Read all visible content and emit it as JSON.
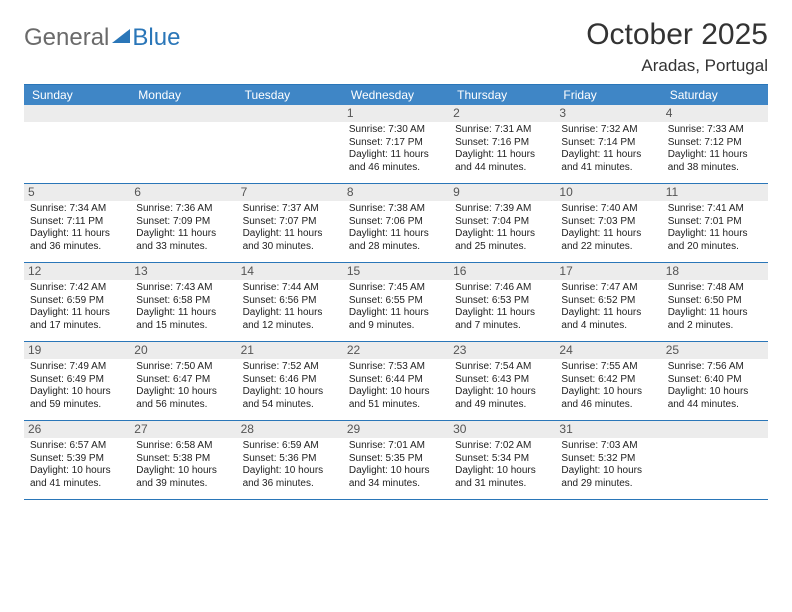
{
  "logo": {
    "general": "General",
    "blue": "Blue"
  },
  "title": "October 2025",
  "location": "Aradas, Portugal",
  "day_headers": [
    "Sunday",
    "Monday",
    "Tuesday",
    "Wednesday",
    "Thursday",
    "Friday",
    "Saturday"
  ],
  "colors": {
    "header_bg": "#3f86c6",
    "border": "#2a76b8",
    "daynum_bg": "#ececec",
    "logo_grey": "#6a6a6a",
    "logo_blue": "#2a76b8"
  },
  "weeks": [
    [
      {
        "blank": true
      },
      {
        "blank": true
      },
      {
        "blank": true
      },
      {
        "n": "1",
        "sr": "7:30 AM",
        "ss": "7:17 PM",
        "dl": "11 hours and 46 minutes."
      },
      {
        "n": "2",
        "sr": "7:31 AM",
        "ss": "7:16 PM",
        "dl": "11 hours and 44 minutes."
      },
      {
        "n": "3",
        "sr": "7:32 AM",
        "ss": "7:14 PM",
        "dl": "11 hours and 41 minutes."
      },
      {
        "n": "4",
        "sr": "7:33 AM",
        "ss": "7:12 PM",
        "dl": "11 hours and 38 minutes."
      }
    ],
    [
      {
        "n": "5",
        "sr": "7:34 AM",
        "ss": "7:11 PM",
        "dl": "11 hours and 36 minutes."
      },
      {
        "n": "6",
        "sr": "7:36 AM",
        "ss": "7:09 PM",
        "dl": "11 hours and 33 minutes."
      },
      {
        "n": "7",
        "sr": "7:37 AM",
        "ss": "7:07 PM",
        "dl": "11 hours and 30 minutes."
      },
      {
        "n": "8",
        "sr": "7:38 AM",
        "ss": "7:06 PM",
        "dl": "11 hours and 28 minutes."
      },
      {
        "n": "9",
        "sr": "7:39 AM",
        "ss": "7:04 PM",
        "dl": "11 hours and 25 minutes."
      },
      {
        "n": "10",
        "sr": "7:40 AM",
        "ss": "7:03 PM",
        "dl": "11 hours and 22 minutes."
      },
      {
        "n": "11",
        "sr": "7:41 AM",
        "ss": "7:01 PM",
        "dl": "11 hours and 20 minutes."
      }
    ],
    [
      {
        "n": "12",
        "sr": "7:42 AM",
        "ss": "6:59 PM",
        "dl": "11 hours and 17 minutes."
      },
      {
        "n": "13",
        "sr": "7:43 AM",
        "ss": "6:58 PM",
        "dl": "11 hours and 15 minutes."
      },
      {
        "n": "14",
        "sr": "7:44 AM",
        "ss": "6:56 PM",
        "dl": "11 hours and 12 minutes."
      },
      {
        "n": "15",
        "sr": "7:45 AM",
        "ss": "6:55 PM",
        "dl": "11 hours and 9 minutes."
      },
      {
        "n": "16",
        "sr": "7:46 AM",
        "ss": "6:53 PM",
        "dl": "11 hours and 7 minutes."
      },
      {
        "n": "17",
        "sr": "7:47 AM",
        "ss": "6:52 PM",
        "dl": "11 hours and 4 minutes."
      },
      {
        "n": "18",
        "sr": "7:48 AM",
        "ss": "6:50 PM",
        "dl": "11 hours and 2 minutes."
      }
    ],
    [
      {
        "n": "19",
        "sr": "7:49 AM",
        "ss": "6:49 PM",
        "dl": "10 hours and 59 minutes."
      },
      {
        "n": "20",
        "sr": "7:50 AM",
        "ss": "6:47 PM",
        "dl": "10 hours and 56 minutes."
      },
      {
        "n": "21",
        "sr": "7:52 AM",
        "ss": "6:46 PM",
        "dl": "10 hours and 54 minutes."
      },
      {
        "n": "22",
        "sr": "7:53 AM",
        "ss": "6:44 PM",
        "dl": "10 hours and 51 minutes."
      },
      {
        "n": "23",
        "sr": "7:54 AM",
        "ss": "6:43 PM",
        "dl": "10 hours and 49 minutes."
      },
      {
        "n": "24",
        "sr": "7:55 AM",
        "ss": "6:42 PM",
        "dl": "10 hours and 46 minutes."
      },
      {
        "n": "25",
        "sr": "7:56 AM",
        "ss": "6:40 PM",
        "dl": "10 hours and 44 minutes."
      }
    ],
    [
      {
        "n": "26",
        "sr": "6:57 AM",
        "ss": "5:39 PM",
        "dl": "10 hours and 41 minutes."
      },
      {
        "n": "27",
        "sr": "6:58 AM",
        "ss": "5:38 PM",
        "dl": "10 hours and 39 minutes."
      },
      {
        "n": "28",
        "sr": "6:59 AM",
        "ss": "5:36 PM",
        "dl": "10 hours and 36 minutes."
      },
      {
        "n": "29",
        "sr": "7:01 AM",
        "ss": "5:35 PM",
        "dl": "10 hours and 34 minutes."
      },
      {
        "n": "30",
        "sr": "7:02 AM",
        "ss": "5:34 PM",
        "dl": "10 hours and 31 minutes."
      },
      {
        "n": "31",
        "sr": "7:03 AM",
        "ss": "5:32 PM",
        "dl": "10 hours and 29 minutes."
      },
      {
        "blank": true
      }
    ]
  ],
  "labels": {
    "sunrise": "Sunrise: ",
    "sunset": "Sunset: ",
    "daylight": "Daylight: "
  }
}
